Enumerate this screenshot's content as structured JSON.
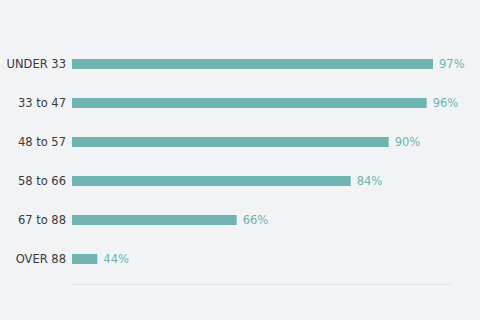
{
  "chart_data": {
    "type": "bar",
    "orientation": "horizontal",
    "categories": [
      "UNDER 33",
      "33 to 47",
      "48 to 57",
      "58 to 66",
      "67 to 88",
      "OVER 88"
    ],
    "values": [
      97,
      96,
      90,
      84,
      66,
      44
    ],
    "value_labels": [
      "97%",
      "96%",
      "90%",
      "84%",
      "66%",
      "44%"
    ],
    "color": "#6fb4b1",
    "xlim": [
      40,
      100
    ],
    "data_labels": true,
    "tick_labels": "y",
    "grid": false
  }
}
